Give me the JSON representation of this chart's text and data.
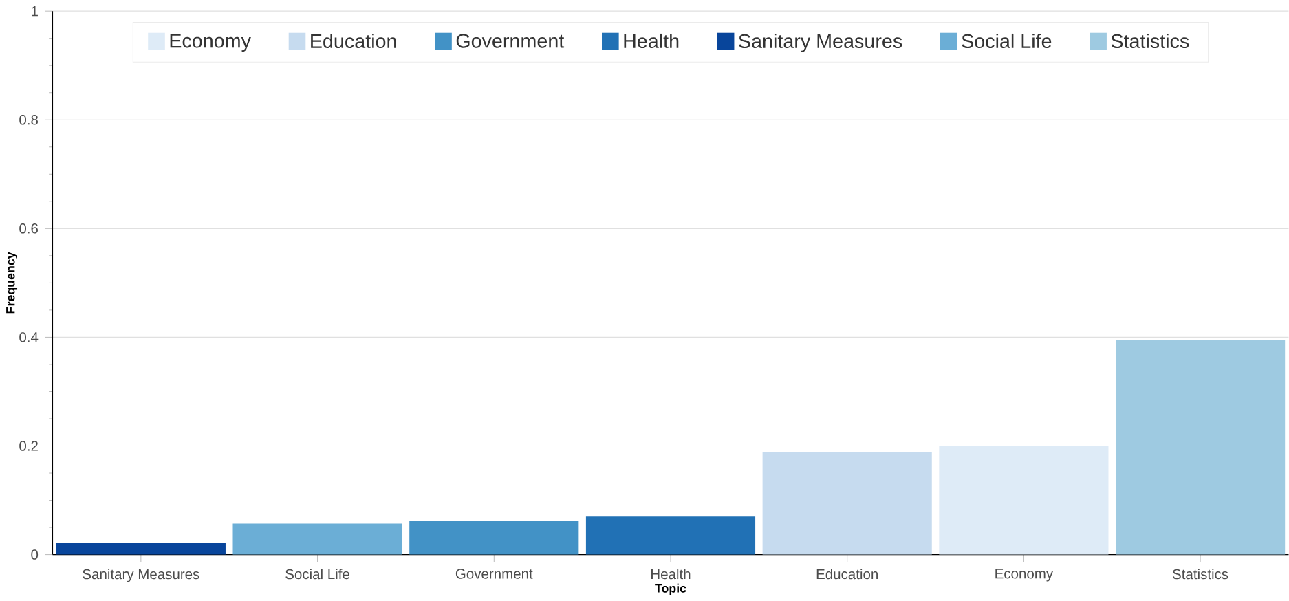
{
  "chart_data": {
    "type": "bar",
    "xlabel": "Topic",
    "ylabel": "Frequency",
    "categories": [
      "Sanitary Measures",
      "Social Life",
      "Government",
      "Health",
      "Education",
      "Economy",
      "Statistics"
    ],
    "series": [
      {
        "name": "Economy",
        "color": "#deebf7",
        "values": [
          null,
          null,
          null,
          null,
          null,
          0.2,
          null
        ]
      },
      {
        "name": "Education",
        "color": "#c6dbef",
        "values": [
          null,
          null,
          null,
          null,
          0.188,
          null,
          null
        ]
      },
      {
        "name": "Government",
        "color": "#4292c6",
        "values": [
          null,
          null,
          0.062,
          null,
          null,
          null,
          null
        ]
      },
      {
        "name": "Health",
        "color": "#2171b5",
        "values": [
          null,
          null,
          null,
          0.07,
          null,
          null,
          null
        ]
      },
      {
        "name": "Sanitary Measures",
        "color": "#08459b",
        "values": [
          0.021,
          null,
          null,
          null,
          null,
          null,
          null
        ]
      },
      {
        "name": "Social Life",
        "color": "#6baed6",
        "values": [
          null,
          0.057,
          null,
          null,
          null,
          null,
          null
        ]
      },
      {
        "name": "Statistics",
        "color": "#9ecae1",
        "values": [
          null,
          null,
          null,
          null,
          null,
          null,
          0.395
        ]
      }
    ],
    "ylim": [
      0,
      1
    ],
    "yticks": [
      0,
      0.2,
      0.4,
      0.6,
      0.8,
      1
    ],
    "grid": "y",
    "legend": "top"
  }
}
